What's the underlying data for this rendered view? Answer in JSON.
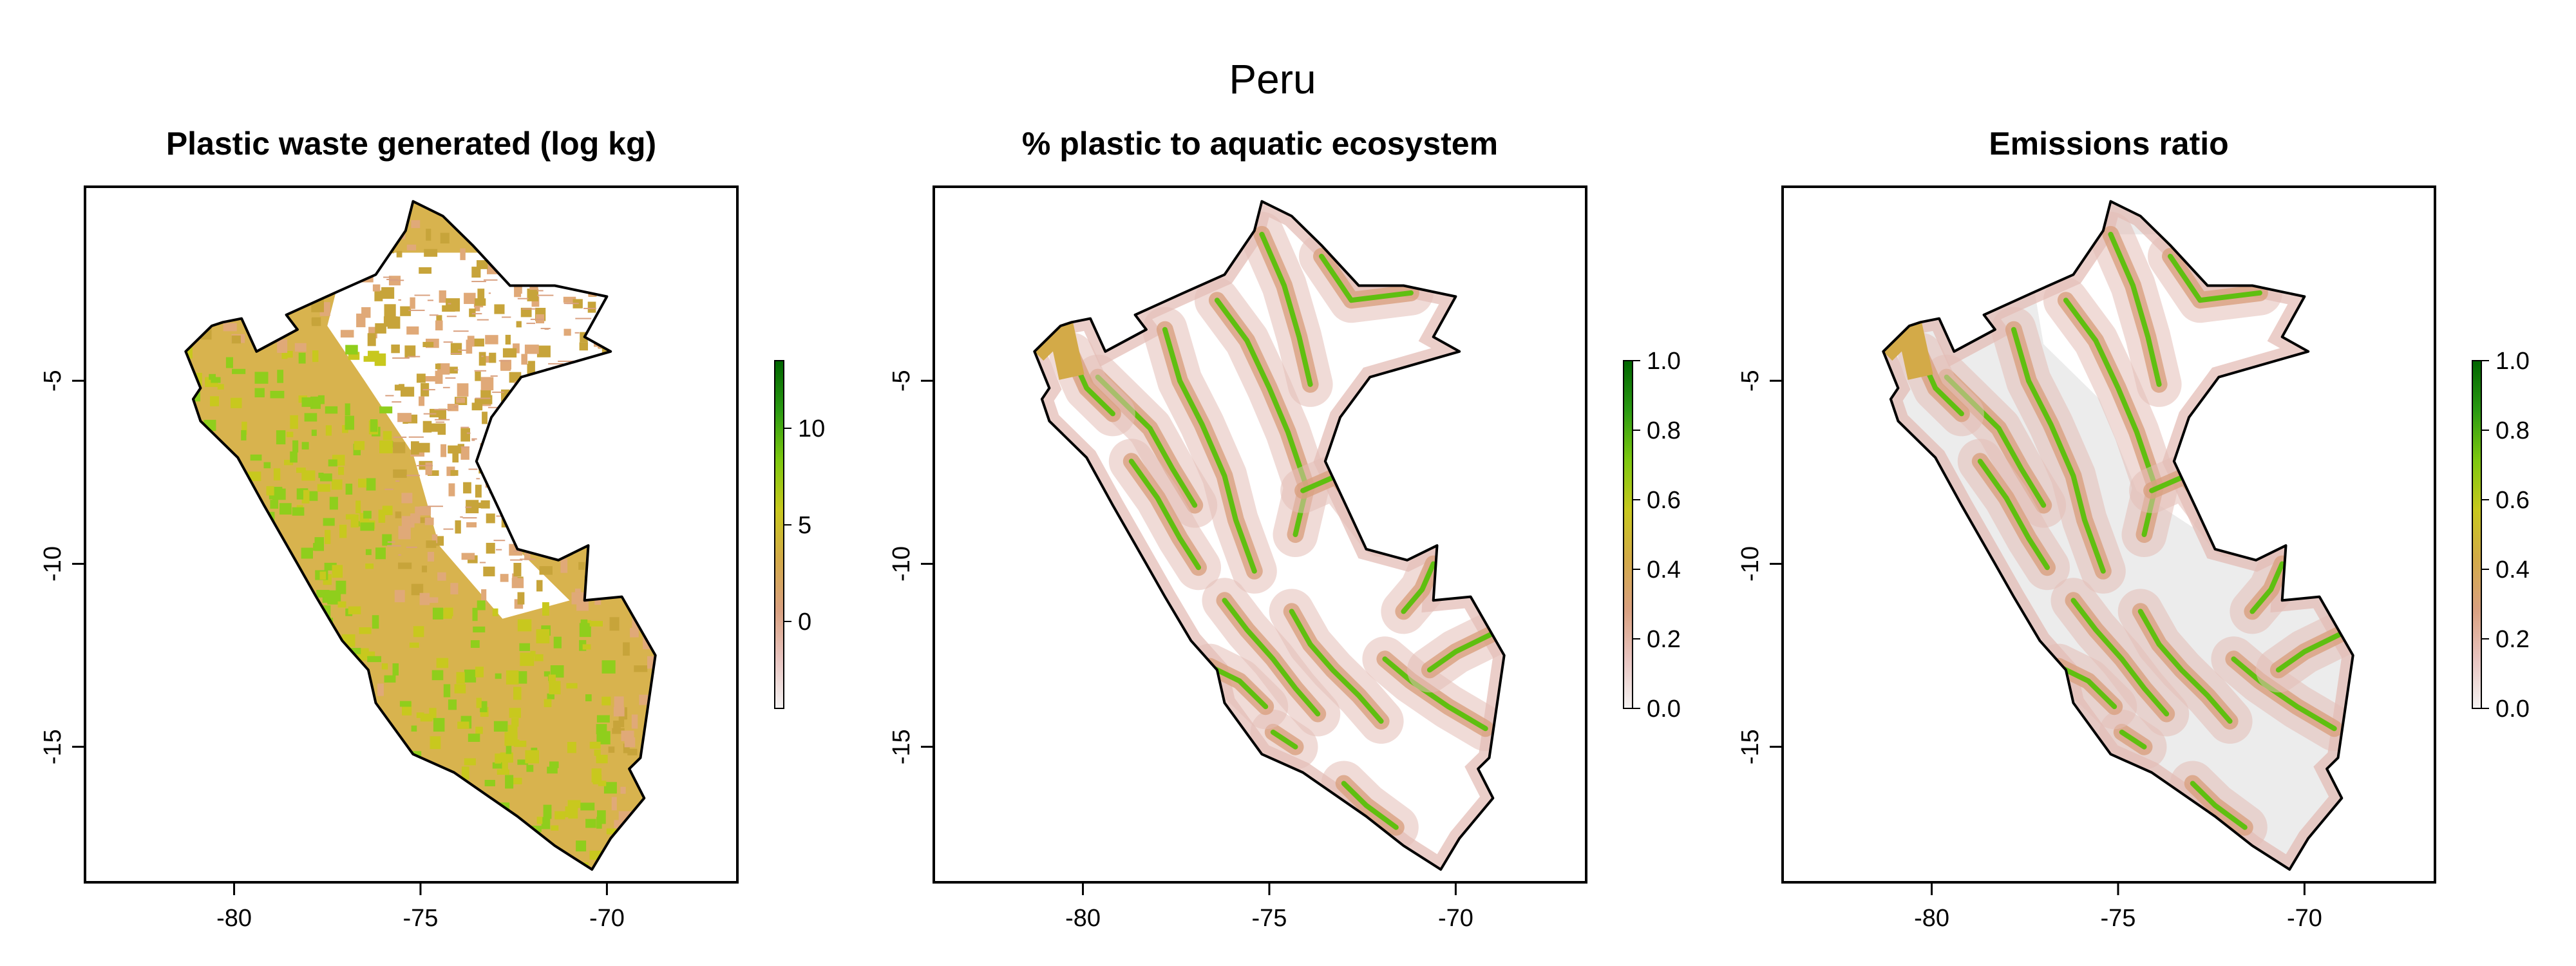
{
  "figure": {
    "title": "Peru"
  },
  "colors": {
    "ramp": [
      "#f4f2f2",
      "#e8c4c0",
      "#d9a07f",
      "#d3aa48",
      "#c8c81e",
      "#7dc80f",
      "#2a9a12",
      "#006400"
    ],
    "na_gray": "#ececec",
    "border": "#000000"
  },
  "chart_data": [
    {
      "type": "heatmap",
      "title": "Plastic waste generated (log kg)",
      "xlabel": "",
      "ylabel": "",
      "xlim": [
        -84,
        -66.5
      ],
      "ylim": [
        -18.7,
        0.3
      ],
      "x_ticks": [
        "-80",
        "-75",
        "-70"
      ],
      "y_ticks": [
        "-5",
        "-10",
        "-15"
      ],
      "x_tick_values": [
        -80,
        -75,
        -70
      ],
      "y_tick_values": [
        -5,
        -10,
        -15
      ],
      "colorbar": {
        "range": [
          -4.5,
          13.5
        ],
        "ticks": [
          "0",
          "5",
          "10"
        ],
        "tick_values": [
          0,
          5,
          10
        ]
      },
      "fill": "dense"
    },
    {
      "type": "heatmap",
      "title": "% plastic to aquatic ecosystem",
      "xlabel": "",
      "ylabel": "",
      "xlim": [
        -84,
        -66.5
      ],
      "ylim": [
        -18.7,
        0.3
      ],
      "x_ticks": [
        "-80",
        "-75",
        "-70"
      ],
      "y_ticks": [
        "-5",
        "-10",
        "-15"
      ],
      "x_tick_values": [
        -80,
        -75,
        -70
      ],
      "y_tick_values": [
        -5,
        -10,
        -15
      ],
      "colorbar": {
        "range": [
          0,
          1
        ],
        "ticks": [
          "0.0",
          "0.2",
          "0.4",
          "0.6",
          "0.8",
          "1.0"
        ],
        "tick_values": [
          0,
          0.2,
          0.4,
          0.6,
          0.8,
          1.0
        ]
      },
      "fill": "rivers"
    },
    {
      "type": "heatmap",
      "title": "Emissions ratio",
      "xlabel": "",
      "ylabel": "",
      "xlim": [
        -84,
        -66.5
      ],
      "ylim": [
        -18.7,
        0.3
      ],
      "x_ticks": [
        "-80",
        "-75",
        "-70"
      ],
      "y_ticks": [
        "-5",
        "-10",
        "-15"
      ],
      "x_tick_values": [
        -80,
        -75,
        -70
      ],
      "y_tick_values": [
        -5,
        -10,
        -15
      ],
      "colorbar": {
        "range": [
          0,
          1
        ],
        "ticks": [
          "0.0",
          "0.2",
          "0.4",
          "0.6",
          "0.8",
          "1.0"
        ],
        "tick_values": [
          0,
          0.2,
          0.4,
          0.6,
          0.8,
          1.0
        ]
      },
      "fill": "ratio"
    }
  ],
  "peru_outline": [
    [
      -81.3,
      -4.2
    ],
    [
      -80.6,
      -3.5
    ],
    [
      -80.3,
      -3.4
    ],
    [
      -79.8,
      -3.3
    ],
    [
      -79.4,
      -4.2
    ],
    [
      -78.3,
      -3.6
    ],
    [
      -78.6,
      -3.2
    ],
    [
      -77.3,
      -2.6
    ],
    [
      -76.2,
      -2.1
    ],
    [
      -75.4,
      -0.9
    ],
    [
      -75.2,
      -0.1
    ],
    [
      -74.4,
      -0.5
    ],
    [
      -73.6,
      -1.3
    ],
    [
      -72.6,
      -2.4
    ],
    [
      -71.4,
      -2.4
    ],
    [
      -70.0,
      -2.7
    ],
    [
      -70.6,
      -3.8
    ],
    [
      -69.9,
      -4.2
    ],
    [
      -72.3,
      -4.9
    ],
    [
      -73.1,
      -6.0
    ],
    [
      -73.5,
      -7.2
    ],
    [
      -72.9,
      -8.5
    ],
    [
      -72.4,
      -9.6
    ],
    [
      -71.3,
      -9.9
    ],
    [
      -70.5,
      -9.5
    ],
    [
      -70.6,
      -11.0
    ],
    [
      -69.6,
      -10.9
    ],
    [
      -68.7,
      -12.5
    ],
    [
      -69.1,
      -15.3
    ],
    [
      -69.4,
      -15.6
    ],
    [
      -69.0,
      -16.4
    ],
    [
      -69.9,
      -17.5
    ],
    [
      -70.4,
      -18.35
    ],
    [
      -71.4,
      -17.7
    ],
    [
      -72.4,
      -16.9
    ],
    [
      -74.1,
      -15.7
    ],
    [
      -75.2,
      -15.2
    ],
    [
      -76.2,
      -13.8
    ],
    [
      -76.4,
      -12.9
    ],
    [
      -77.1,
      -12.1
    ],
    [
      -77.8,
      -10.9
    ],
    [
      -78.3,
      -10.0
    ],
    [
      -79.2,
      -8.4
    ],
    [
      -79.9,
      -7.1
    ],
    [
      -80.9,
      -6.1
    ],
    [
      -81.1,
      -5.5
    ],
    [
      -80.9,
      -5.2
    ],
    [
      -81.3,
      -4.2
    ]
  ]
}
